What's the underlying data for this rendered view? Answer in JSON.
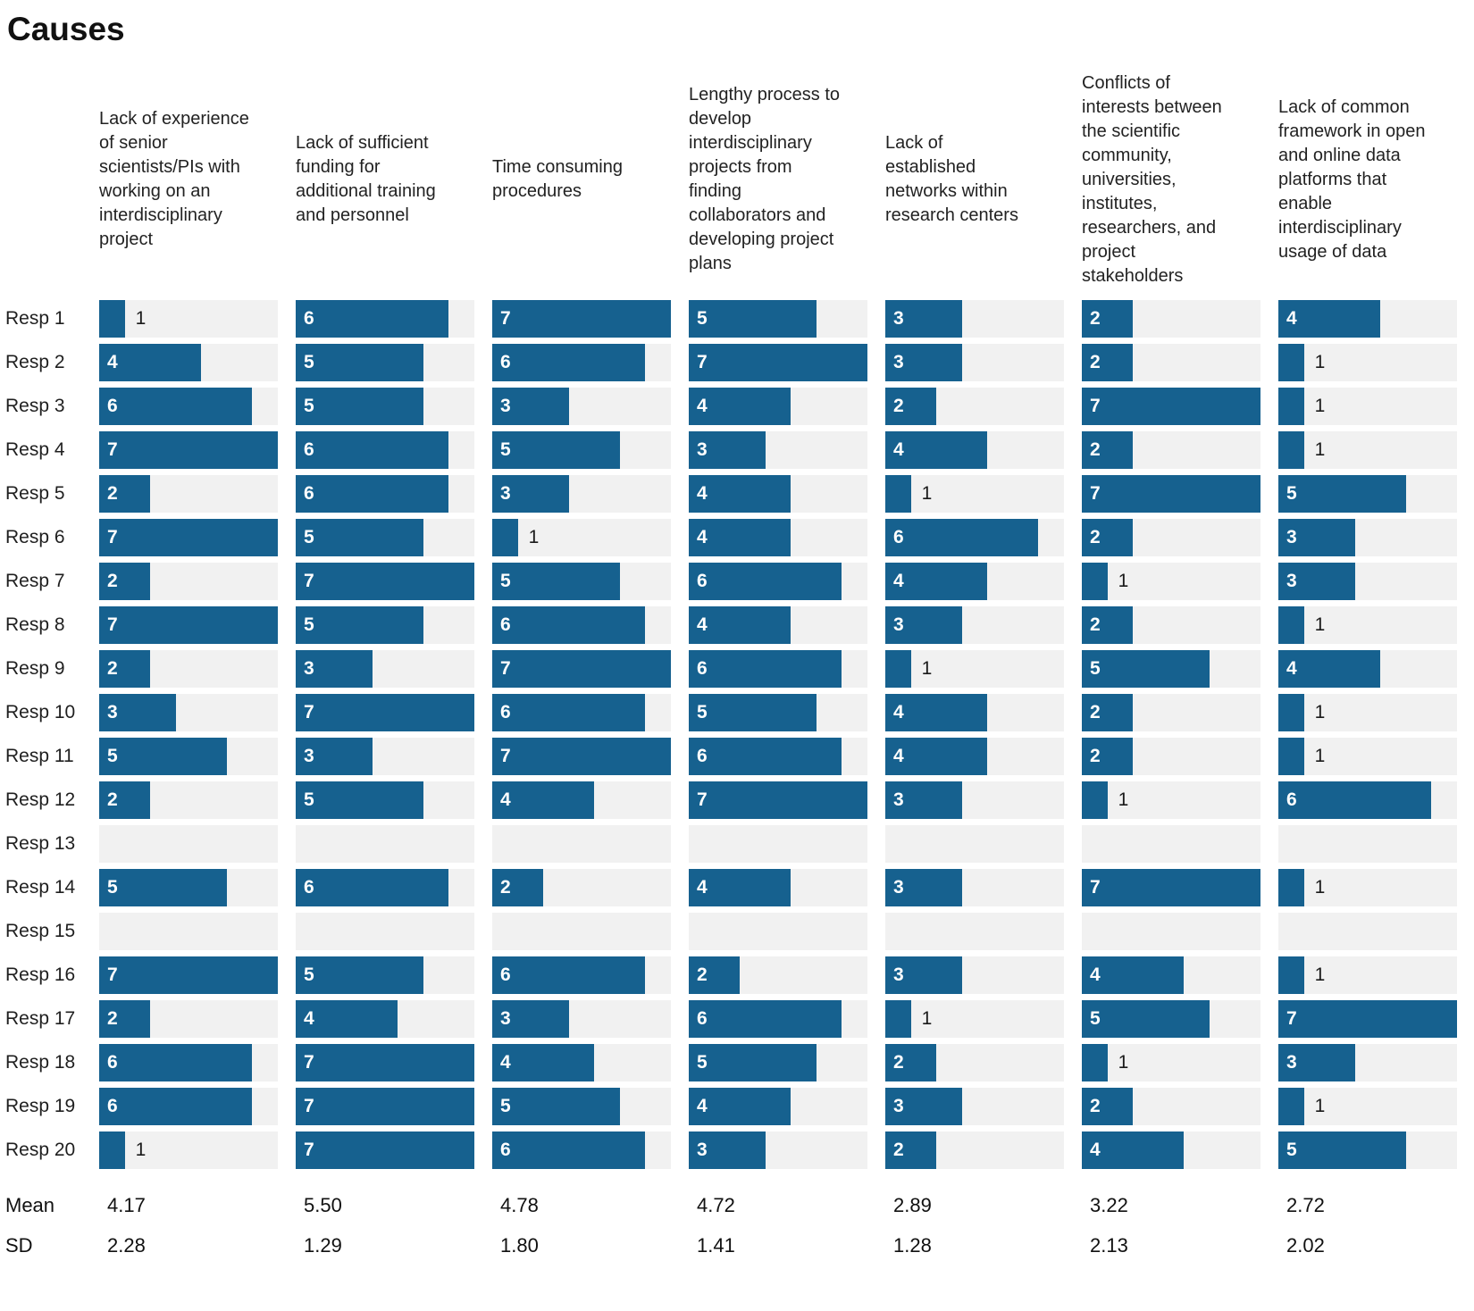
{
  "title": "Causes",
  "stats": {
    "mean_label": "Mean",
    "sd_label": "SD"
  },
  "colors": {
    "bar": "#16618F",
    "track": "#F1F1F1",
    "value_inside": "#FFFFFF",
    "value_outside": "#1A1A1A"
  },
  "chart_data": {
    "type": "bar",
    "orientation": "horizontal",
    "title": "Causes",
    "value_range": [
      0,
      7
    ],
    "grid": false,
    "legend": "none",
    "categories": [
      "Resp 1",
      "Resp 2",
      "Resp 3",
      "Resp 4",
      "Resp 5",
      "Resp 6",
      "Resp 7",
      "Resp 8",
      "Resp 9",
      "Resp 10",
      "Resp 11",
      "Resp 12",
      "Resp 13",
      "Resp 14",
      "Resp 15",
      "Resp 16",
      "Resp 17",
      "Resp 18",
      "Resp 19",
      "Resp 20"
    ],
    "series": [
      {
        "name": "Lack of experience\nof senior\nscientists/PIs with\nworking on an\ninterdisciplinary\nproject",
        "values": [
          1,
          4,
          6,
          7,
          2,
          7,
          2,
          7,
          2,
          3,
          5,
          2,
          null,
          5,
          null,
          7,
          2,
          6,
          6,
          1
        ],
        "mean": "4.17",
        "sd": "2.28"
      },
      {
        "name": "Lack of sufficient\nfunding for\nadditional training\nand personnel",
        "values": [
          6,
          5,
          5,
          6,
          6,
          5,
          7,
          5,
          3,
          7,
          3,
          5,
          null,
          6,
          null,
          5,
          4,
          7,
          7,
          7
        ],
        "mean": "5.50",
        "sd": "1.29"
      },
      {
        "name": "Time consuming\nprocedures",
        "values": [
          7,
          6,
          3,
          5,
          3,
          1,
          5,
          6,
          7,
          6,
          7,
          4,
          null,
          2,
          null,
          6,
          3,
          4,
          5,
          6
        ],
        "mean": "4.78",
        "sd": "1.80"
      },
      {
        "name": "Lengthy process to\ndevelop\ninterdisciplinary\nprojects from\nfinding\ncollaborators and\ndeveloping project\nplans",
        "values": [
          5,
          7,
          4,
          3,
          4,
          4,
          6,
          4,
          6,
          5,
          6,
          7,
          null,
          4,
          null,
          2,
          6,
          5,
          4,
          3
        ],
        "mean": "4.72",
        "sd": "1.41"
      },
      {
        "name": "Lack of\nestablished\nnetworks within\nresearch centers",
        "values": [
          3,
          3,
          2,
          4,
          1,
          6,
          4,
          3,
          1,
          4,
          4,
          3,
          null,
          3,
          null,
          3,
          1,
          2,
          3,
          2
        ],
        "mean": "2.89",
        "sd": "1.28"
      },
      {
        "name": "Conflicts of\ninterests between\nthe scientific\ncommunity,\nuniversities,\ninstitutes,\nresearchers, and\nproject\nstakeholders",
        "values": [
          2,
          2,
          7,
          2,
          7,
          2,
          1,
          2,
          5,
          2,
          2,
          1,
          null,
          7,
          null,
          4,
          5,
          1,
          2,
          4
        ],
        "mean": "3.22",
        "sd": "2.13"
      },
      {
        "name": "Lack of common\nframework in open\nand online data\nplatforms that\nenable\ninterdisciplinary\nusage of data",
        "values": [
          4,
          1,
          1,
          1,
          5,
          3,
          3,
          1,
          4,
          1,
          1,
          6,
          null,
          1,
          null,
          1,
          7,
          3,
          1,
          5
        ],
        "mean": "2.72",
        "sd": "2.02"
      }
    ]
  }
}
